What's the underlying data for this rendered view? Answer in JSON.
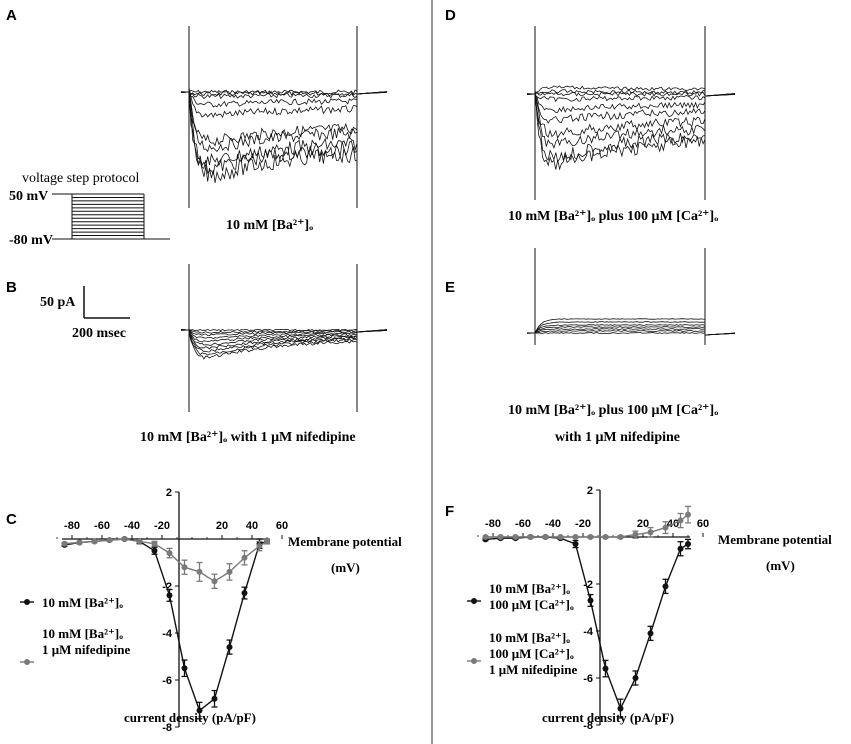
{
  "panels": {
    "A": "A",
    "B": "B",
    "C": "C",
    "D": "D",
    "E": "E",
    "F": "F"
  },
  "protocol": {
    "title": "voltage  step  protocol",
    "v_high": "50 mV",
    "v_low": "-80 mV"
  },
  "scalebar": {
    "current": "50 pA",
    "time": "200 msec"
  },
  "captions": {
    "A": "10 mM [Ba²⁺]ₒ",
    "B": "10 mM [Ba²⁺]ₒ with 1 μM nifedipine",
    "D": "10 mM [Ba²⁺]ₒ plus 100 μM [Ca²⁺]ₒ",
    "E_line1": "10 mM [Ba²⁺]ₒ plus 100 μM [Ca²⁺]ₒ",
    "E_line2": "with 1 μM nifedipine"
  },
  "colors": {
    "black_series": "#111111",
    "gray_series": "#7a7a7a",
    "divider": "#777777"
  },
  "chart_data": [
    {
      "type": "line",
      "panel": "C",
      "xlabel": "Membrane potential",
      "xunit": "(mV)",
      "ylabel": "current density (pA/pF)",
      "xlim": [
        -80,
        60
      ],
      "ylim": [
        -8,
        2
      ],
      "xticks": [
        -80,
        -60,
        -40,
        -20,
        20,
        40,
        60
      ],
      "yticks": [
        2,
        -2,
        -4,
        -6,
        -8
      ],
      "x": [
        -85,
        -75,
        -65,
        -55,
        -45,
        -35,
        -25,
        -15,
        -5,
        5,
        15,
        25,
        35,
        45,
        50
      ],
      "series": [
        {
          "name": "10 mM [Ba²⁺]ₒ",
          "values": [
            -0.25,
            -0.15,
            -0.1,
            -0.05,
            0.0,
            -0.1,
            -0.5,
            -2.4,
            -5.5,
            -7.3,
            -6.8,
            -4.6,
            -2.3,
            -0.2,
            -0.1
          ],
          "errors": [
            0.05,
            0.05,
            0.05,
            0.05,
            0.05,
            0.1,
            0.15,
            0.25,
            0.35,
            0.35,
            0.35,
            0.3,
            0.25,
            0.2,
            0.1
          ],
          "legend_lines": [
            "10 mM [Ba²⁺]ₒ"
          ]
        },
        {
          "name": "10 mM [Ba²⁺]ₒ 1 μM nifedipine",
          "values": [
            -0.2,
            -0.15,
            -0.1,
            -0.05,
            0.0,
            -0.1,
            -0.2,
            -0.6,
            -1.2,
            -1.4,
            -1.8,
            -1.4,
            -0.8,
            -0.3,
            -0.1
          ],
          "errors": [
            0.05,
            0.05,
            0.05,
            0.05,
            0.05,
            0.05,
            0.1,
            0.2,
            0.3,
            0.4,
            0.3,
            0.35,
            0.3,
            0.2,
            0.1
          ],
          "legend_lines": [
            "10 mM [Ba²⁺]ₒ",
            "1 μM nifedipine"
          ]
        }
      ]
    },
    {
      "type": "line",
      "panel": "F",
      "xlabel": "Membrane potential",
      "xunit": "(mV)",
      "ylabel": "current density (pA/pF)",
      "xlim": [
        -80,
        60
      ],
      "ylim": [
        -8,
        2
      ],
      "xticks": [
        -80,
        -60,
        -40,
        -20,
        20,
        40,
        60
      ],
      "yticks": [
        2,
        -2,
        -4,
        -6,
        -8
      ],
      "x": [
        -85,
        -75,
        -65,
        -55,
        -45,
        -35,
        -25,
        -15,
        -5,
        5,
        15,
        25,
        35,
        45,
        50
      ],
      "series": [
        {
          "name": "10 mM [Ba²⁺]ₒ 100 μM [Ca²⁺]ₒ",
          "values": [
            -0.1,
            -0.05,
            -0.05,
            0.0,
            0.0,
            -0.05,
            -0.3,
            -2.7,
            -5.6,
            -7.3,
            -6.0,
            -4.1,
            -2.1,
            -0.5,
            -0.3
          ],
          "errors": [
            0.05,
            0.05,
            0.05,
            0.05,
            0.05,
            0.05,
            0.15,
            0.25,
            0.35,
            0.4,
            0.3,
            0.3,
            0.3,
            0.3,
            0.2
          ],
          "legend_lines": [
            "10 mM [Ba²⁺]ₒ",
            "100 μM [Ca²⁺]ₒ"
          ]
        },
        {
          "name": "10 mM [Ba²⁺]ₒ 100 μM [Ca²⁺]ₒ 1 μM nifedipine",
          "values": [
            0.0,
            0.0,
            0.0,
            0.0,
            0.0,
            0.0,
            0.0,
            0.0,
            0.0,
            0.0,
            0.1,
            0.2,
            0.4,
            0.7,
            0.95
          ],
          "errors": [
            0.03,
            0.03,
            0.03,
            0.03,
            0.03,
            0.03,
            0.03,
            0.05,
            0.05,
            0.05,
            0.15,
            0.2,
            0.25,
            0.3,
            0.35
          ],
          "legend_lines": [
            "10 mM [Ba²⁺]ₒ",
            "100 μM [Ca²⁺]ₒ",
            "1 μM nifedipine"
          ]
        }
      ]
    }
  ]
}
